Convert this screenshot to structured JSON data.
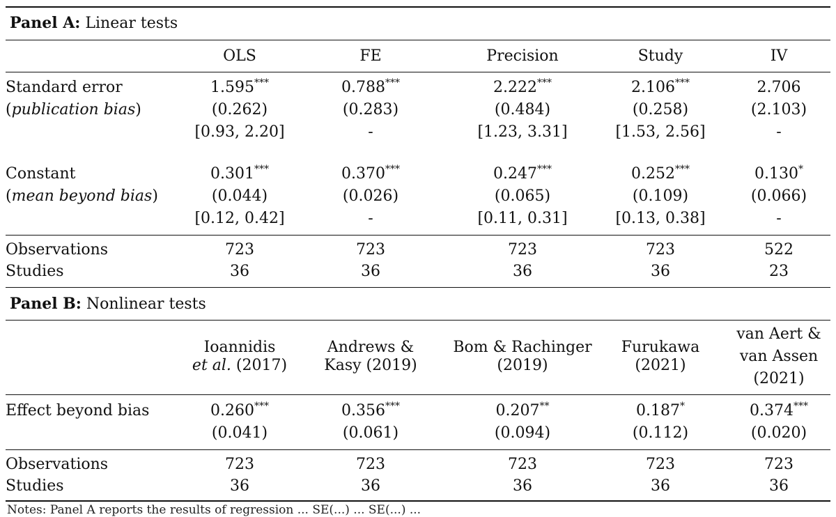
{
  "panel_a": {
    "title_bold": "Panel A:",
    "title_rest": " Linear tests",
    "columns": [
      "OLS",
      "FE",
      "Precision",
      "Study",
      "IV"
    ],
    "se_label": "Standard error",
    "se_sublabel": "publication bias",
    "se_est": [
      "1.595",
      "0.788",
      "2.222",
      "2.106",
      "2.706"
    ],
    "se_stars": [
      "***",
      "***",
      "***",
      "***",
      ""
    ],
    "se_se": [
      "(0.262)",
      "(0.283)",
      "(0.484)",
      "(0.258)",
      "(2.103)"
    ],
    "se_ci": [
      "[0.93, 2.20]",
      "-",
      "[1.23, 3.31]",
      "[1.53, 2.56]",
      "-"
    ],
    "const_label": "Constant",
    "const_sublabel": "mean beyond bias",
    "const_est": [
      "0.301",
      "0.370",
      "0.247",
      "0.252",
      "0.130"
    ],
    "const_stars": [
      "***",
      "***",
      "***",
      "***",
      "*"
    ],
    "const_se": [
      "(0.044)",
      "(0.026)",
      "(0.065)",
      "(0.109)",
      "(0.066)"
    ],
    "const_ci": [
      "[0.12, 0.42]",
      "-",
      "[0.11, 0.31]",
      "[0.13, 0.38]",
      "-"
    ],
    "obs_label": "Observations",
    "obs": [
      "723",
      "723",
      "723",
      "723",
      "522"
    ],
    "studies_label": "Studies",
    "studies": [
      "36",
      "36",
      "36",
      "36",
      "23"
    ]
  },
  "panel_b": {
    "title_bold": "Panel B:",
    "title_rest": " Nonlinear tests",
    "col1_line1": "Ioannidis",
    "col1_line2_em": "et al.",
    "col1_line2_rest": " (2017)",
    "col2_line1": "Andrews &",
    "col2_line2": "Kasy (2019)",
    "col3_line1": "Bom & Rachinger",
    "col3_line2": "(2019)",
    "col4_line1": "Furukawa",
    "col4_line2": "(2021)",
    "col5_line1": "van Aert &",
    "col5_line2": "van Assen",
    "col5_line3": "(2021)",
    "effect_label": "Effect beyond bias",
    "effect_est": [
      "0.260",
      "0.356",
      "0.207",
      "0.187",
      "0.374"
    ],
    "effect_stars": [
      "***",
      "***",
      "**",
      "*",
      "***"
    ],
    "effect_se": [
      "(0.041)",
      "(0.061)",
      "(0.094)",
      "(0.112)",
      "(0.020)"
    ],
    "obs_label": "Observations",
    "obs": [
      "723",
      "723",
      "723",
      "723",
      "723"
    ],
    "studies_label": "Studies",
    "studies": [
      "36",
      "36",
      "36",
      "36",
      "36"
    ]
  },
  "note_text": "Notes: Panel A reports the results of regression ... SE(...) ... SE(...) ..."
}
